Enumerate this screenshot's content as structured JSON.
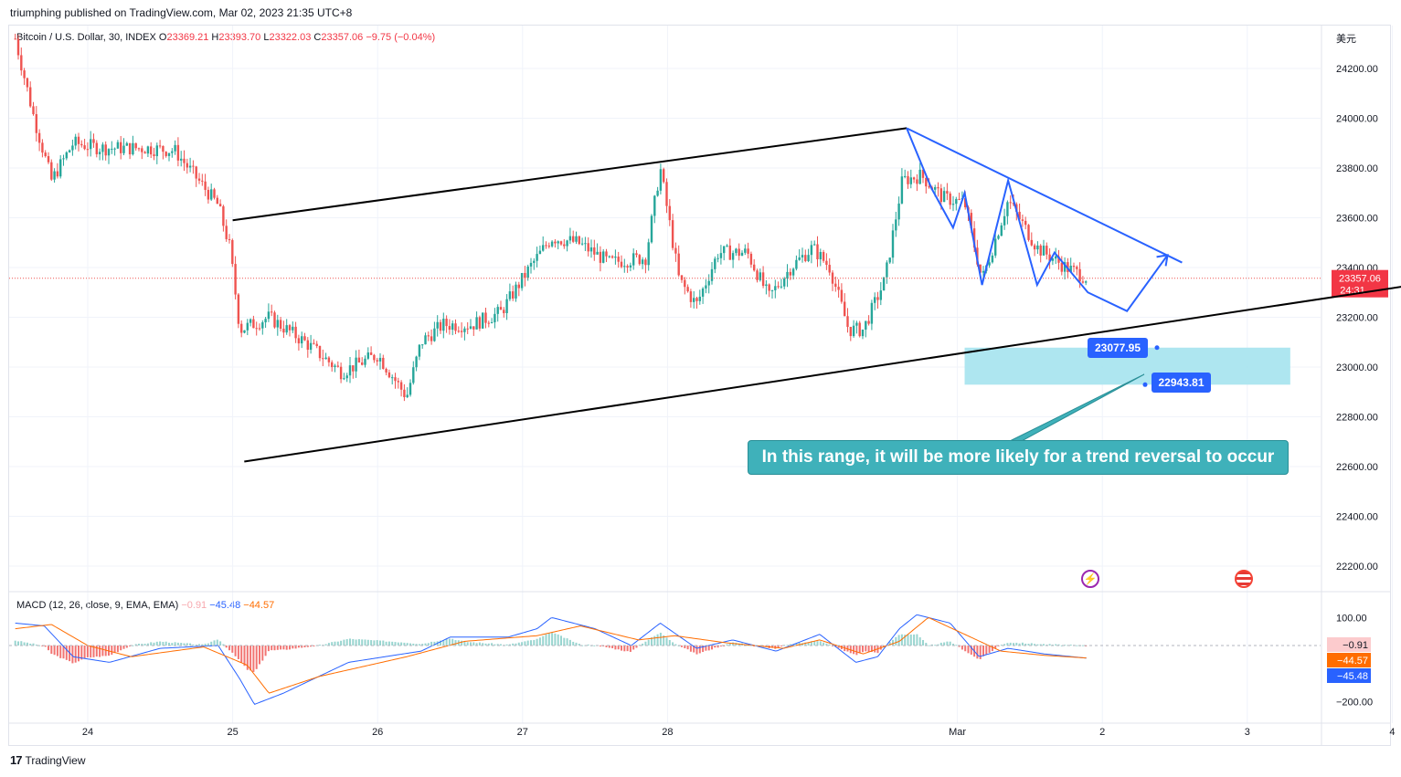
{
  "header": {
    "published": "triumphing published on TradingView.com, Mar 02, 2023 21:35 UTC+8",
    "symbol": "Bitcoin / U.S. Dollar, 30, INDEX",
    "o_label": "O",
    "o_value": "23369.21",
    "h_label": "H",
    "h_value": "23393.70",
    "l_label": "L",
    "l_value": "23322.03",
    "c_label": "C",
    "c_value": "23357.06",
    "change": "−9.75 (−0.04%)",
    "currency": "美元"
  },
  "macd_header": {
    "label": "MACD (12, 26, close, 9, EMA, EMA)",
    "hist": "−0.91",
    "macd": "−45.48",
    "signal": "−44.57"
  },
  "callout": {
    "text": "In this range, it will be more likely for a trend reversal to occur",
    "upper_level": "23077.95",
    "lower_level": "22943.81"
  },
  "footer": {
    "logo_text": "TradingView"
  },
  "colors": {
    "up": "#26a69a",
    "down": "#ef5350",
    "trendline": "#000000",
    "projection": "#2962ff",
    "zone": "#a5e3ee",
    "callout": "#3fb1ba",
    "macd": "#2962ff",
    "signal": "#ff6d00"
  },
  "icons": [
    "bolt-icon",
    "us-flag-icon",
    "tradingview-logo-icon"
  ],
  "chart_data": [
    {
      "type": "candlestick",
      "symbol": "Bitcoin / U.S. Dollar, 30, INDEX",
      "x_ticks": [
        "24",
        "25",
        "26",
        "27",
        "28",
        "Mar",
        "2",
        "3",
        "4"
      ],
      "y_ticks": [
        "24200.00",
        "24000.00",
        "23800.00",
        "23600.00",
        "23400.00",
        "23200.00",
        "23000.00",
        "22800.00",
        "22600.00",
        "22400.00",
        "22200.00"
      ],
      "ylim": [
        22140,
        24400
      ],
      "xlim": [
        23.5,
        4.45
      ],
      "grid": true,
      "last_price": "23357.06",
      "countdown": "24:31",
      "anchors": [
        {
          "day": 23.5,
          "price": 24320
        },
        {
          "day": 23.63,
          "price": 24000
        },
        {
          "day": 23.75,
          "price": 23750
        },
        {
          "day": 23.9,
          "price": 23900
        },
        {
          "day": 24.1,
          "price": 23880
        },
        {
          "day": 24.4,
          "price": 23880
        },
        {
          "day": 24.6,
          "price": 23870
        },
        {
          "day": 24.9,
          "price": 23650
        },
        {
          "day": 24.98,
          "price": 23480
        },
        {
          "day": 25.05,
          "price": 23150
        },
        {
          "day": 25.25,
          "price": 23200
        },
        {
          "day": 25.5,
          "price": 23100
        },
        {
          "day": 25.75,
          "price": 22980
        },
        {
          "day": 26.0,
          "price": 23050
        },
        {
          "day": 26.2,
          "price": 22880
        },
        {
          "day": 26.3,
          "price": 23100
        },
        {
          "day": 26.45,
          "price": 23170
        },
        {
          "day": 26.65,
          "price": 23170
        },
        {
          "day": 26.85,
          "price": 23220
        },
        {
          "day": 27.05,
          "price": 23400
        },
        {
          "day": 27.2,
          "price": 23520
        },
        {
          "day": 27.38,
          "price": 23500
        },
        {
          "day": 27.6,
          "price": 23420
        },
        {
          "day": 27.85,
          "price": 23440
        },
        {
          "day": 27.95,
          "price": 23800
        },
        {
          "day": 28.08,
          "price": 23350
        },
        {
          "day": 28.2,
          "price": 23250
        },
        {
          "day": 28.35,
          "price": 23460
        },
        {
          "day": 28.55,
          "price": 23460
        },
        {
          "day": 28.7,
          "price": 23280
        },
        {
          "day": 28.85,
          "price": 23400
        },
        {
          "day": 29.0,
          "price": 23480
        },
        {
          "day": 29.12,
          "price": 23400
        },
        {
          "day": 29.25,
          "price": 23150
        },
        {
          "day": 29.35,
          "price": 23150
        },
        {
          "day": 29.5,
          "price": 23350
        },
        {
          "day": 29.62,
          "price": 23750
        },
        {
          "day": 29.75,
          "price": 23770
        },
        {
          "day": 29.9,
          "price": 23680
        },
        {
          "day": 30.05,
          "price": 23660
        },
        {
          "day": 30.17,
          "price": 23350
        },
        {
          "day": 30.35,
          "price": 23670
        },
        {
          "day": 30.55,
          "price": 23480
        },
        {
          "day": 30.75,
          "price": 23400
        },
        {
          "day": 30.9,
          "price": 23357.06
        }
      ],
      "trendlines": [
        {
          "from": [
            25.0,
            23590
          ],
          "to": [
            29.65,
            23960
          ]
        },
        {
          "from": [
            25.08,
            22620
          ],
          "to": [
            4.43,
            23355
          ]
        }
      ],
      "projection_path": [
        [
          29.65,
          23960
        ],
        [
          29.82,
          23720
        ],
        [
          29.97,
          23560
        ],
        [
          30.05,
          23700
        ],
        [
          30.17,
          23330
        ],
        [
          30.35,
          23750
        ],
        [
          30.55,
          23330
        ],
        [
          30.67,
          23460
        ],
        [
          30.9,
          23300
        ],
        [
          31.17,
          23225
        ],
        [
          31.45,
          23450
        ]
      ],
      "resistance_line": {
        "from": [
          29.65,
          23960
        ],
        "to": [
          31.55,
          23420
        ]
      },
      "zone": {
        "x_from": 30.05,
        "x_to": 31.25,
        "high": 23077.95,
        "low": 22943.81
      }
    },
    {
      "type": "line",
      "title": "MACD (12, 26, close, 9, EMA, EMA)",
      "y_ticks": [
        "100.00",
        "−200.00"
      ],
      "ylim": [
        -230,
        140
      ],
      "last_values": {
        "histogram": -0.91,
        "macd": -45.48,
        "signal": -44.57
      },
      "macd_anchors": [
        {
          "day": 23.5,
          "v": 80
        },
        {
          "day": 23.7,
          "v": 70
        },
        {
          "day": 23.9,
          "v": -40
        },
        {
          "day": 24.15,
          "v": -60
        },
        {
          "day": 24.5,
          "v": -10
        },
        {
          "day": 24.9,
          "v": 0
        },
        {
          "day": 25.05,
          "v": -120
        },
        {
          "day": 25.15,
          "v": -210
        },
        {
          "day": 25.35,
          "v": -170
        },
        {
          "day": 25.8,
          "v": -60
        },
        {
          "day": 26.3,
          "v": -20
        },
        {
          "day": 26.5,
          "v": 30
        },
        {
          "day": 26.9,
          "v": 30
        },
        {
          "day": 27.1,
          "v": 60
        },
        {
          "day": 27.2,
          "v": 100
        },
        {
          "day": 27.5,
          "v": 60
        },
        {
          "day": 27.75,
          "v": 0
        },
        {
          "day": 27.95,
          "v": 80
        },
        {
          "day": 28.2,
          "v": -10
        },
        {
          "day": 28.45,
          "v": 20
        },
        {
          "day": 28.75,
          "v": -20
        },
        {
          "day": 29.05,
          "v": 40
        },
        {
          "day": 29.3,
          "v": -60
        },
        {
          "day": 29.45,
          "v": -40
        },
        {
          "day": 29.6,
          "v": 60
        },
        {
          "day": 29.72,
          "v": 110
        },
        {
          "day": 29.95,
          "v": 80
        },
        {
          "day": 30.15,
          "v": -40
        },
        {
          "day": 30.35,
          "v": -10
        },
        {
          "day": 30.6,
          "v": -30
        },
        {
          "day": 30.9,
          "v": -45.48
        }
      ],
      "signal_anchors": [
        {
          "day": 23.5,
          "v": 60
        },
        {
          "day": 23.75,
          "v": 75
        },
        {
          "day": 24.0,
          "v": 0
        },
        {
          "day": 24.3,
          "v": -40
        },
        {
          "day": 24.8,
          "v": -5
        },
        {
          "day": 25.1,
          "v": -70
        },
        {
          "day": 25.25,
          "v": -170
        },
        {
          "day": 25.6,
          "v": -110
        },
        {
          "day": 26.2,
          "v": -40
        },
        {
          "day": 26.6,
          "v": 15
        },
        {
          "day": 27.1,
          "v": 35
        },
        {
          "day": 27.4,
          "v": 70
        },
        {
          "day": 27.8,
          "v": 20
        },
        {
          "day": 28.05,
          "v": 35
        },
        {
          "day": 28.4,
          "v": 10
        },
        {
          "day": 28.8,
          "v": -10
        },
        {
          "day": 29.05,
          "v": 20
        },
        {
          "day": 29.35,
          "v": -30
        },
        {
          "day": 29.6,
          "v": 15
        },
        {
          "day": 29.8,
          "v": 100
        },
        {
          "day": 30.05,
          "v": 40
        },
        {
          "day": 30.3,
          "v": -20
        },
        {
          "day": 30.6,
          "v": -35
        },
        {
          "day": 30.9,
          "v": -44.57
        }
      ]
    }
  ]
}
